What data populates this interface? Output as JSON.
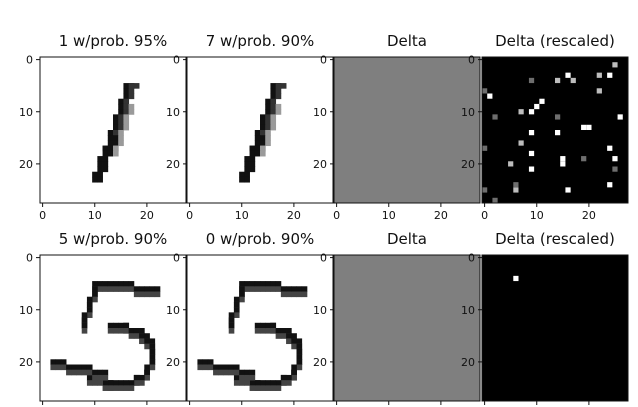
{
  "figure": {
    "rows": [
      {
        "panels": [
          {
            "title": "1 w/prob. 95%",
            "kind": "digit",
            "digit": "1"
          },
          {
            "title": "7 w/prob. 90%",
            "kind": "digit",
            "digit": "1"
          },
          {
            "title": "Delta",
            "kind": "gray"
          },
          {
            "title": "Delta (rescaled)",
            "kind": "noise",
            "pixel_count": 38
          }
        ]
      },
      {
        "panels": [
          {
            "title": "5 w/prob. 90%",
            "kind": "digit",
            "digit": "5"
          },
          {
            "title": "0 w/prob. 90%",
            "kind": "digit",
            "digit": "5"
          },
          {
            "title": "Delta",
            "kind": "gray"
          },
          {
            "title": "Delta (rescaled)",
            "kind": "single"
          }
        ]
      }
    ],
    "x_ticks": [
      "0",
      "10",
      "20"
    ],
    "y_ticks": [
      "0",
      "10",
      "20"
    ],
    "colors": {
      "gray_fill": "#7f7f7f",
      "noise_bg": "#000000",
      "digit_ink": "#111111"
    }
  }
}
